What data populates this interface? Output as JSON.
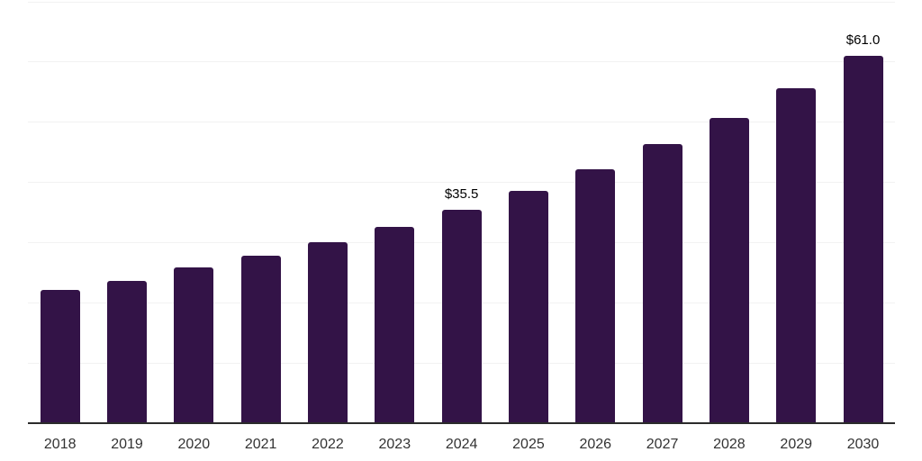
{
  "chart_data": {
    "type": "bar",
    "categories": [
      "2018",
      "2019",
      "2020",
      "2021",
      "2022",
      "2023",
      "2024",
      "2025",
      "2026",
      "2027",
      "2028",
      "2029",
      "2030"
    ],
    "values": [
      22.1,
      23.7,
      25.9,
      27.8,
      30.1,
      32.6,
      35.5,
      38.6,
      42.2,
      46.4,
      50.7,
      55.7,
      61.0
    ],
    "data_labels": [
      "",
      "",
      "",
      "",
      "",
      "",
      "$35.5",
      "",
      "",
      "",
      "",
      "",
      "$61.0"
    ],
    "xlabel": "",
    "ylabel": "",
    "ylim": [
      0,
      70
    ],
    "gridline_step": 10,
    "grid": "on",
    "legend": "none",
    "y_tick_labels_shown": false,
    "colors": {
      "bar": "#331347",
      "gridline": "#f2f2f2",
      "axis_line": "#2b2b2b",
      "x_tick_label": "#333333",
      "data_label": "#000000",
      "background": "#ffffff"
    }
  }
}
